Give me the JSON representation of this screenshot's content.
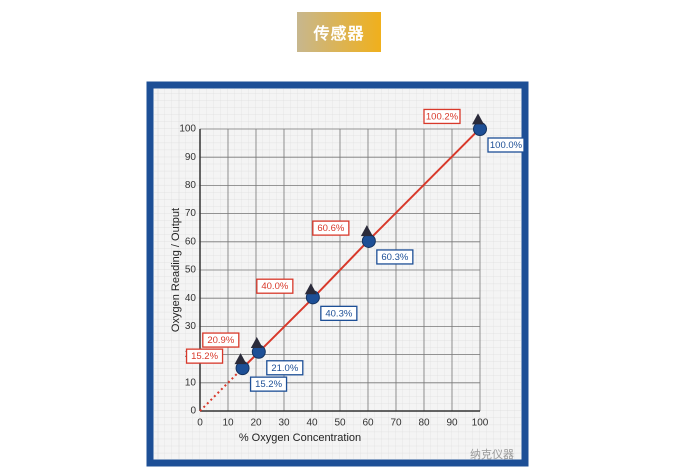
{
  "header": {
    "badge": "传感器"
  },
  "chart_data": {
    "type": "scatter",
    "x_label": "% Oxygen Concentration",
    "y_label": "Oxygen Reading / Output",
    "x": [
      15.2,
      21.0,
      40.3,
      60.3,
      100.0
    ],
    "series": [
      {
        "color": "#1d4f96",
        "marker": "circle",
        "values": [
          15.2,
          21.0,
          40.3,
          60.3,
          100.0
        ],
        "value_labels": [
          "15.2%",
          "21.0%",
          "40.3%",
          "60.3%",
          "100.0%"
        ]
      },
      {
        "color": "#d8392b",
        "marker": "triangle",
        "values": [
          15.2,
          20.9,
          40.0,
          60.6,
          100.2
        ],
        "value_labels": [
          "15.2%",
          "20.9%",
          "40.0%",
          "60.6%",
          "100.2%"
        ]
      }
    ],
    "xlim": [
      0,
      100
    ],
    "ylim": [
      0,
      100
    ],
    "xticks": [
      0,
      10,
      20,
      30,
      40,
      50,
      60,
      70,
      80,
      90,
      100
    ],
    "yticks": [
      0,
      10,
      20,
      30,
      40,
      50,
      60,
      70,
      80,
      90,
      100
    ],
    "grid": true
  },
  "watermark": "纳克仪器"
}
